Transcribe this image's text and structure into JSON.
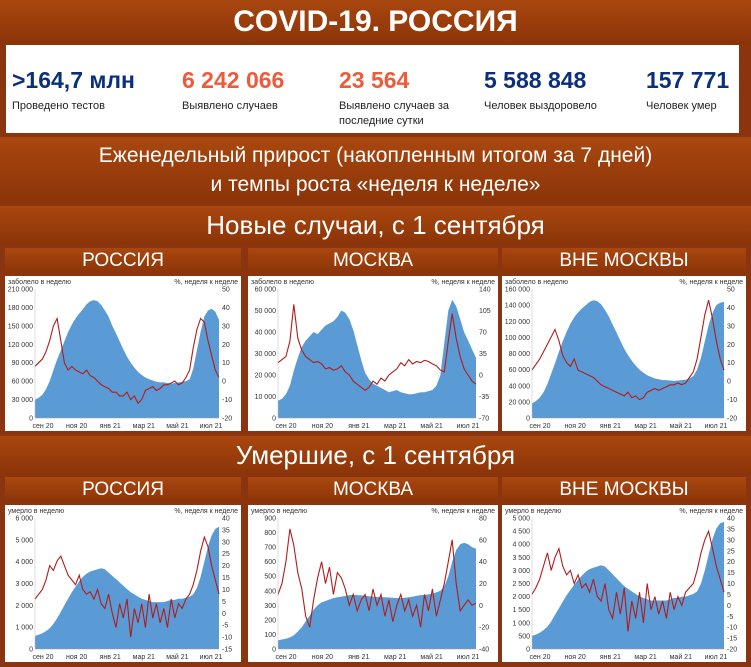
{
  "header": {
    "title": "COVID-19. РОССИЯ",
    "subtitle_line1": "Еженедельный прирост (накопленным итогом за 7 дней)",
    "subtitle_line2": "и темпы роста «неделя к неделе»",
    "section_cases": "Новые случаи, с 1 сентября",
    "section_deaths": "Умершие, с 1 сентября"
  },
  "stats": [
    {
      "value": ">164,7 млн",
      "label": "Проведено тестов",
      "color": "#0b2f7a"
    },
    {
      "value": "6 242 066",
      "label": "Выявлено случаев",
      "color": "#ef5a3a"
    },
    {
      "value": "23 564",
      "label": "Выявлено случаев за последние сутки",
      "color": "#ef5a3a"
    },
    {
      "value": "5 588 848",
      "label": "Человек выздоровело",
      "color": "#0b2f7a"
    },
    {
      "value": "157 771",
      "label": "Человек умер",
      "color": "#0b2f7a"
    }
  ],
  "colors": {
    "area": "#5b9bd5",
    "line": "#b01c1c"
  },
  "chart_data": [
    {
      "type": "area",
      "id": "cases-russia",
      "region": "РОССИЯ",
      "left_caption": "заболело в неделю",
      "right_caption": "%, неделя к неделе",
      "ylim": [
        0,
        210000
      ],
      "y_ticks": [
        0,
        30000,
        60000,
        90000,
        120000,
        150000,
        180000,
        210000
      ],
      "y_tick_labels": [
        "0",
        "30 000",
        "60 000",
        "90 000",
        "120 000",
        "150 000",
        "180 000",
        "210 000"
      ],
      "y2lim": [
        -20,
        50
      ],
      "y2_ticks": [
        -20,
        -10,
        0,
        10,
        20,
        30,
        40,
        50
      ],
      "x_labels": [
        "сен 20",
        "ноя 20",
        "янв 21",
        "мар 21",
        "май 21",
        "июл 21"
      ],
      "series": [
        {
          "name": "",
          "axis": "left",
          "values": [
            30000,
            33000,
            38000,
            47000,
            60000,
            78000,
            95000,
            110000,
            125000,
            140000,
            152000,
            162000,
            170000,
            177000,
            185000,
            190000,
            192000,
            190000,
            184000,
            175000,
            165000,
            150000,
            138000,
            125000,
            112000,
            100000,
            90000,
            82000,
            75000,
            70000,
            66000,
            63000,
            61000,
            59000,
            58000,
            58000,
            57000,
            56000,
            57000,
            58000,
            59000,
            60000,
            63000,
            80000,
            110000,
            140000,
            165000,
            175000,
            178000,
            173000,
            160000
          ]
        },
        {
          "name": "",
          "axis": "right",
          "values": [
            8,
            10,
            12,
            16,
            22,
            30,
            34,
            22,
            10,
            6,
            8,
            6,
            5,
            4,
            6,
            3,
            2,
            0,
            -2,
            -3,
            -4,
            -6,
            -6,
            -8,
            -8,
            -6,
            -10,
            -8,
            -12,
            -10,
            -5,
            -4,
            -3,
            -5,
            -4,
            -2,
            -2,
            -1,
            0,
            -2,
            -1,
            2,
            6,
            18,
            28,
            34,
            32,
            22,
            14,
            6,
            2
          ]
        }
      ]
    },
    {
      "type": "area",
      "id": "cases-moscow",
      "region": "МОСКВА",
      "left_caption": "заболело в неделю",
      "right_caption": "%, неделя к неделе",
      "ylim": [
        0,
        60000
      ],
      "y_ticks": [
        0,
        10000,
        20000,
        30000,
        40000,
        50000,
        60000
      ],
      "y_tick_labels": [
        "0",
        "10 000",
        "20 000",
        "30 000",
        "40 000",
        "50 000",
        "60 000"
      ],
      "y2lim": [
        -70,
        140
      ],
      "y2_ticks": [
        -70,
        -35,
        0,
        35,
        70,
        105,
        140
      ],
      "x_labels": [
        "сен 20",
        "ноя 20",
        "янв 21",
        "мар 21",
        "май 21",
        "июл 21"
      ],
      "series": [
        {
          "name": "",
          "axis": "left",
          "values": [
            8000,
            9000,
            11000,
            15000,
            22000,
            28000,
            33000,
            36000,
            38000,
            40000,
            39000,
            41000,
            43000,
            44000,
            45000,
            47000,
            50000,
            49000,
            46000,
            41000,
            34000,
            27000,
            21000,
            18000,
            16000,
            15000,
            14000,
            13000,
            12000,
            12500,
            13000,
            12000,
            11500,
            11000,
            11000,
            11500,
            12000,
            12000,
            12500,
            13000,
            15000,
            20000,
            35000,
            50000,
            55000,
            52000,
            46000,
            40000,
            36000,
            32000,
            28000
          ]
        },
        {
          "name": "",
          "axis": "right",
          "values": [
            20,
            25,
            30,
            55,
            115,
            60,
            40,
            30,
            25,
            20,
            22,
            18,
            10,
            12,
            8,
            10,
            15,
            5,
            0,
            -10,
            -15,
            -20,
            -25,
            -20,
            -10,
            -15,
            -5,
            -10,
            0,
            5,
            10,
            20,
            15,
            25,
            18,
            22,
            20,
            24,
            22,
            18,
            15,
            8,
            5,
            55,
            100,
            60,
            30,
            10,
            0,
            -10,
            -15
          ]
        }
      ]
    },
    {
      "type": "area",
      "id": "cases-outside",
      "region": "ВНЕ МОСКВЫ",
      "left_caption": "заболело в неделю",
      "right_caption": "%, неделя к неделе",
      "ylim": [
        0,
        160000
      ],
      "y_ticks": [
        0,
        20000,
        40000,
        60000,
        80000,
        100000,
        120000,
        140000,
        160000
      ],
      "y_tick_labels": [
        "0",
        "20 000",
        "40 000",
        "60 000",
        "80 000",
        "100 000",
        "120 000",
        "140 000",
        "160 000"
      ],
      "y2lim": [
        -20,
        50
      ],
      "y2_ticks": [
        -20,
        -10,
        0,
        10,
        20,
        30,
        40,
        50
      ],
      "x_labels": [
        "сен 20",
        "ноя 20",
        "янв 21",
        "мар 21",
        "май 21",
        "июл 21"
      ],
      "series": [
        {
          "name": "",
          "axis": "left",
          "values": [
            18000,
            21000,
            25000,
            32000,
            42000,
            55000,
            68000,
            82000,
            95000,
            107000,
            117000,
            125000,
            131000,
            136000,
            140000,
            144000,
            146000,
            145000,
            141000,
            134000,
            126000,
            116000,
            106000,
            96000,
            86000,
            78000,
            71000,
            65000,
            60000,
            56000,
            53000,
            51000,
            49000,
            48000,
            47000,
            47000,
            46500,
            46000,
            46500,
            47000,
            47500,
            49000,
            52000,
            60000,
            75000,
            95000,
            115000,
            130000,
            140000,
            143000,
            144000
          ]
        },
        {
          "name": "",
          "axis": "right",
          "values": [
            6,
            9,
            12,
            16,
            20,
            24,
            28,
            22,
            14,
            10,
            8,
            12,
            6,
            5,
            4,
            3,
            2,
            0,
            -2,
            -3,
            -4,
            -5,
            -6,
            -7,
            -8,
            -6,
            -9,
            -8,
            -10,
            -9,
            -6,
            -5,
            -4,
            -5,
            -4,
            -3,
            -2,
            -2,
            -1,
            -2,
            -1,
            2,
            5,
            12,
            24,
            36,
            44,
            34,
            22,
            12,
            6
          ]
        }
      ]
    },
    {
      "type": "area",
      "id": "deaths-russia",
      "region": "РОССИЯ",
      "left_caption": "умерло в неделю",
      "right_caption": "%, неделя к неделе",
      "ylim": [
        0,
        6000
      ],
      "y_ticks": [
        0,
        1000,
        2000,
        3000,
        4000,
        5000,
        6000
      ],
      "y_tick_labels": [
        "0",
        "1 000",
        "2 000",
        "3 000",
        "4 000",
        "5 000",
        "6 000"
      ],
      "y2lim": [
        -15,
        40
      ],
      "y2_ticks": [
        -15,
        -10,
        -5,
        0,
        5,
        10,
        15,
        20,
        25,
        30,
        35,
        40
      ],
      "x_labels": [
        "сен 20",
        "ноя 20",
        "янв 21",
        "мар 21",
        "май 21",
        "июл 21"
      ],
      "series": [
        {
          "name": "",
          "axis": "left",
          "values": [
            600,
            650,
            720,
            820,
            950,
            1150,
            1400,
            1700,
            2000,
            2300,
            2600,
            2850,
            3100,
            3300,
            3450,
            3550,
            3600,
            3650,
            3700,
            3650,
            3500,
            3350,
            3200,
            3050,
            2900,
            2750,
            2600,
            2500,
            2400,
            2300,
            2250,
            2200,
            2150,
            2150,
            2150,
            2150,
            2200,
            2250,
            2250,
            2300,
            2300,
            2350,
            2400,
            2500,
            2800,
            3300,
            4000,
            4700,
            5200,
            5500,
            5600
          ]
        },
        {
          "name": "",
          "axis": "right",
          "values": [
            6,
            8,
            10,
            14,
            20,
            18,
            22,
            24,
            20,
            16,
            14,
            12,
            16,
            10,
            8,
            9,
            6,
            10,
            4,
            2,
            8,
            0,
            -6,
            4,
            -2,
            6,
            -10,
            2,
            -4,
            4,
            -6,
            8,
            -2,
            4,
            -4,
            2,
            -6,
            6,
            -2,
            4,
            2,
            6,
            8,
            12,
            18,
            26,
            32,
            28,
            20,
            14,
            8
          ]
        }
      ]
    },
    {
      "type": "area",
      "id": "deaths-moscow",
      "region": "МОСКВА",
      "left_caption": "умерло в неделю",
      "right_caption": "%, неделя к неделе",
      "ylim": [
        0,
        900
      ],
      "y_ticks": [
        0,
        100,
        200,
        300,
        400,
        500,
        600,
        700,
        800,
        900
      ],
      "y_tick_labels": [
        "0",
        "100",
        "200",
        "300",
        "400",
        "500",
        "600",
        "700",
        "800",
        "900"
      ],
      "y2lim": [
        -40,
        80
      ],
      "y2_ticks": [
        -40,
        -20,
        0,
        20,
        40,
        60,
        80
      ],
      "x_labels": [
        "сен 20",
        "ноя 20",
        "янв 21",
        "мар 21",
        "май 21",
        "июл 21"
      ],
      "series": [
        {
          "name": "",
          "axis": "left",
          "values": [
            60,
            65,
            70,
            80,
            95,
            120,
            150,
            190,
            230,
            270,
            300,
            320,
            330,
            340,
            350,
            355,
            360,
            365,
            370,
            372,
            370,
            368,
            365,
            362,
            360,
            358,
            356,
            355,
            354,
            352,
            350,
            350,
            352,
            355,
            360,
            365,
            370,
            372,
            375,
            380,
            390,
            400,
            430,
            500,
            600,
            680,
            720,
            730,
            720,
            700,
            690
          ]
        },
        {
          "name": "",
          "axis": "right",
          "values": [
            10,
            20,
            40,
            70,
            55,
            30,
            15,
            -10,
            -20,
            5,
            25,
            40,
            20,
            35,
            10,
            30,
            25,
            15,
            0,
            10,
            -5,
            5,
            10,
            -5,
            15,
            0,
            10,
            -10,
            5,
            -15,
            0,
            10,
            -5,
            5,
            -10,
            0,
            -20,
            10,
            -5,
            15,
            -10,
            5,
            20,
            40,
            60,
            20,
            -5,
            0,
            5,
            0,
            2
          ]
        }
      ]
    },
    {
      "type": "area",
      "id": "deaths-outside",
      "region": "ВНЕ МОСКВЫ",
      "left_caption": "умерло в неделю",
      "right_caption": "%, неделя к неделе",
      "ylim": [
        0,
        5000
      ],
      "y_ticks": [
        0,
        500,
        1000,
        1500,
        2000,
        2500,
        3000,
        3500,
        4000,
        4500,
        5000
      ],
      "y_tick_labels": [
        "0",
        "500",
        "1 000",
        "1 500",
        "2 000",
        "2 500",
        "3 000",
        "3 500",
        "4 000",
        "4 500",
        "5 000"
      ],
      "y2lim": [
        -20,
        40
      ],
      "y2_ticks": [
        -20,
        -15,
        -10,
        -5,
        0,
        5,
        10,
        15,
        20,
        25,
        30,
        35,
        40
      ],
      "x_labels": [
        "сен 20",
        "ноя 20",
        "янв 21",
        "мар 21",
        "май 21",
        "июл 21"
      ],
      "series": [
        {
          "name": "",
          "axis": "left",
          "values": [
            500,
            550,
            620,
            720,
            850,
            1050,
            1300,
            1550,
            1800,
            2050,
            2250,
            2450,
            2650,
            2800,
            2950,
            3050,
            3100,
            3150,
            3200,
            3150,
            3000,
            2850,
            2700,
            2550,
            2400,
            2300,
            2200,
            2100,
            2000,
            1950,
            1900,
            1850,
            1850,
            1850,
            1850,
            1850,
            1900,
            1950,
            1950,
            2000,
            2000,
            2050,
            2100,
            2200,
            2500,
            3000,
            3600,
            4200,
            4600,
            4800,
            4850
          ]
        },
        {
          "name": "",
          "axis": "right",
          "values": [
            5,
            8,
            12,
            18,
            24,
            16,
            22,
            26,
            18,
            14,
            16,
            10,
            14,
            8,
            10,
            6,
            12,
            4,
            2,
            10,
            -2,
            -6,
            6,
            -4,
            8,
            -12,
            2,
            -6,
            6,
            -8,
            10,
            -2,
            4,
            -4,
            2,
            -6,
            6,
            -2,
            4,
            0,
            6,
            8,
            10,
            16,
            24,
            30,
            34,
            26,
            18,
            12,
            6
          ]
        }
      ]
    }
  ]
}
